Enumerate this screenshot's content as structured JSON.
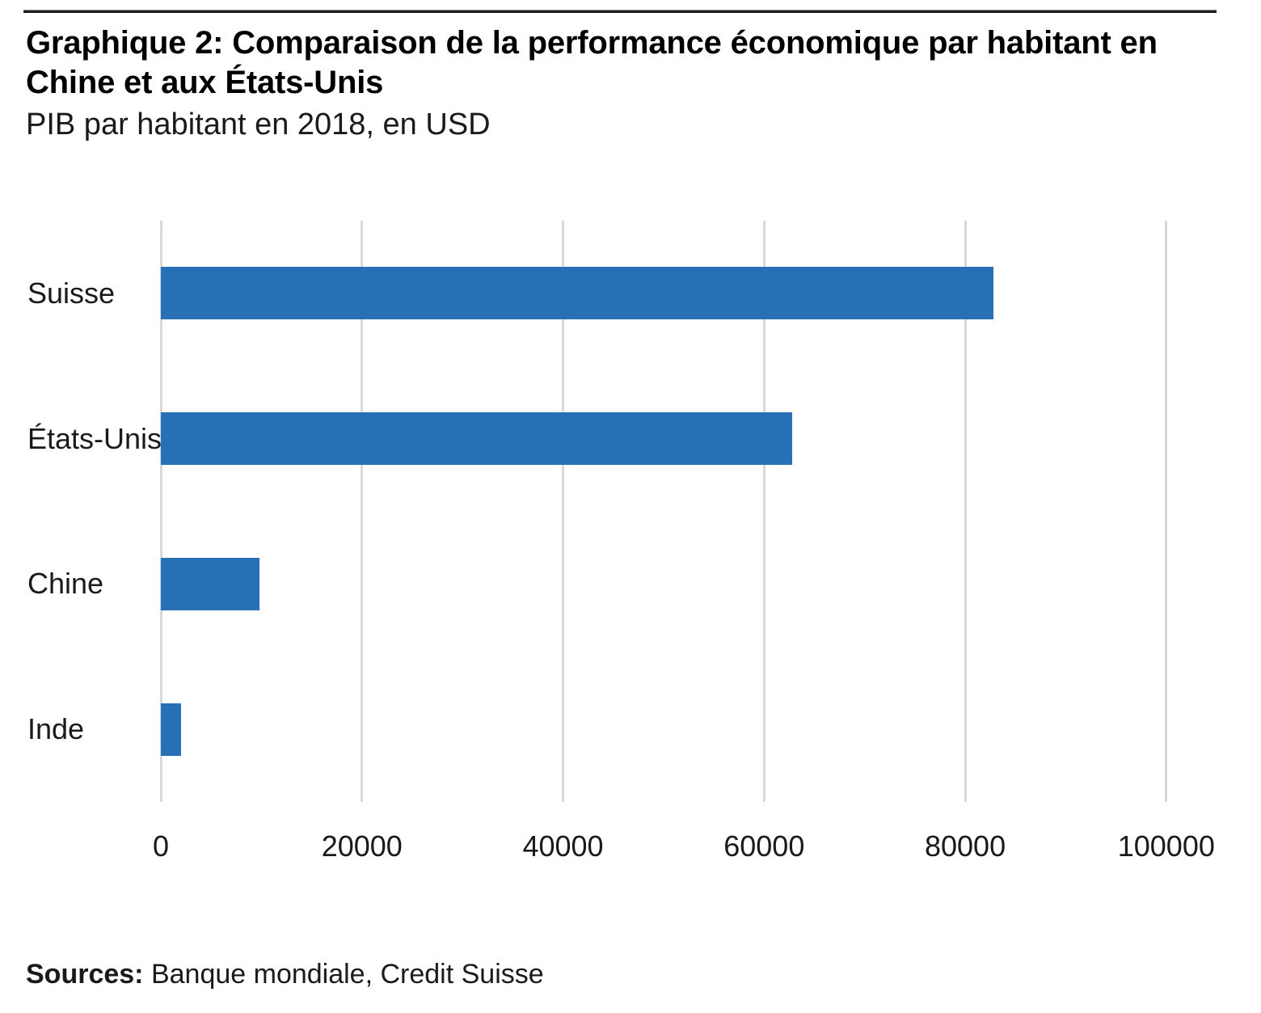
{
  "header": {
    "title_line1": "Graphique 2: Comparaison de la performance économique par habitant en",
    "title_line2": "Chine et aux États-Unis",
    "subtitle": "PIB par habitant en 2018, en USD"
  },
  "chart_data": {
    "type": "bar",
    "orientation": "horizontal",
    "title": "Graphique 2: Comparaison de la performance économique par habitant en Chine et aux États-Unis",
    "subtitle": "PIB par habitant en 2018, en USD",
    "categories": [
      "Suisse",
      "États-Unis",
      "Chine",
      "Inde"
    ],
    "values": [
      82800,
      62800,
      9770,
      2000
    ],
    "xlabel": "",
    "ylabel": "",
    "xlim": [
      0,
      105000
    ],
    "x_ticks": [
      0,
      20000,
      40000,
      60000,
      80000,
      100000
    ],
    "x_tick_labels": [
      "0",
      "20000",
      "40000",
      "60000",
      "80000",
      "100000"
    ],
    "grid": "vertical",
    "legend": "none",
    "bar_color": "#2770b6",
    "gridline_color": "#d9d9d9",
    "text_color": "#1a1a1a"
  },
  "footer": {
    "sources_label": "Sources:",
    "sources_text": " Banque mondiale, Credit Suisse"
  }
}
